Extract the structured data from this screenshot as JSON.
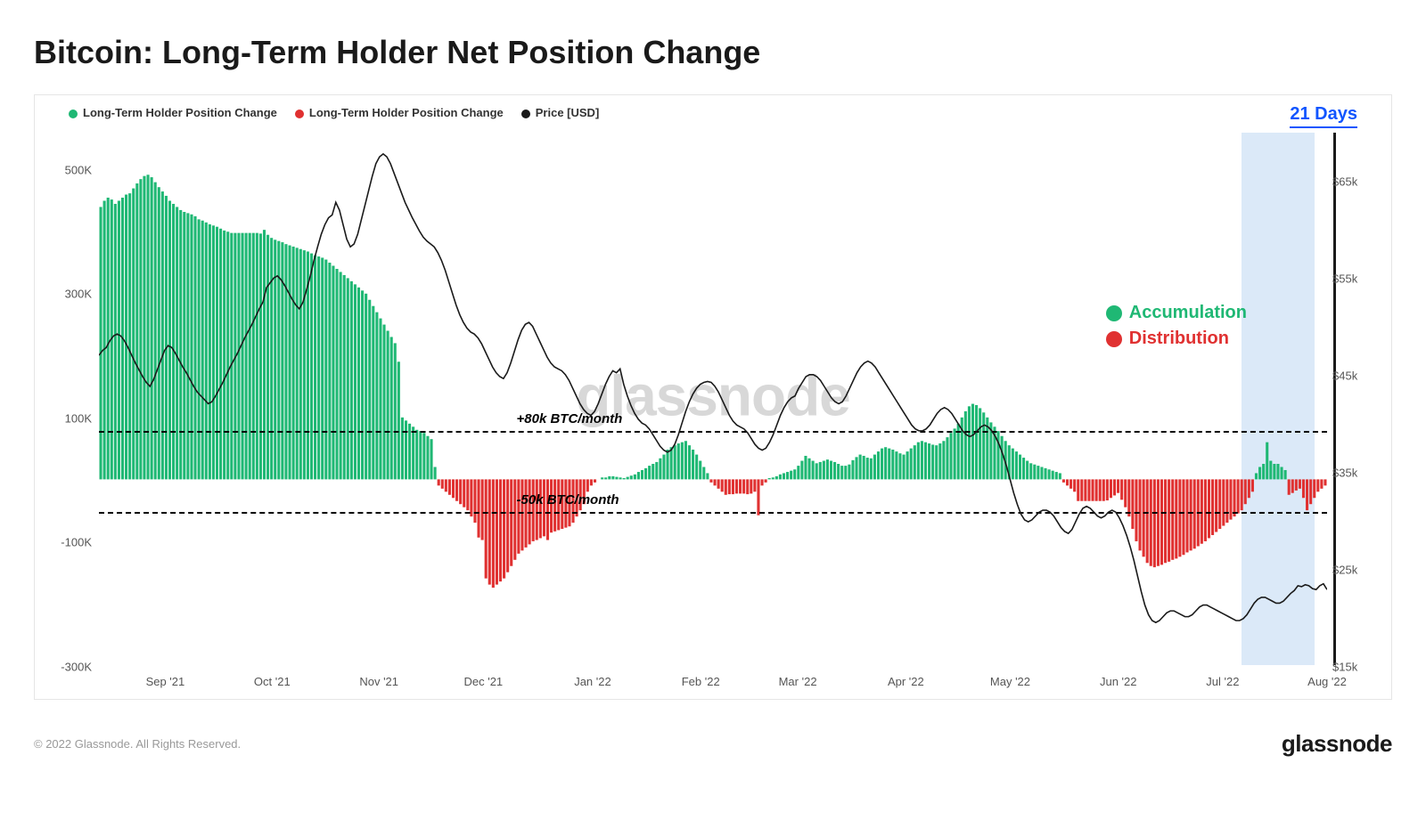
{
  "title": "Bitcoin: Long-Term Holder Net Position Change",
  "copyright": "© 2022 Glassnode. All Rights Reserved.",
  "brand": "glassnode",
  "watermark": "glassnode",
  "highlight_label": "21 Days",
  "legend": {
    "items": [
      {
        "label": "Long-Term Holder Position Change",
        "color": "#1fb874"
      },
      {
        "label": "Long-Term Holder Position Change",
        "color": "#e03131"
      },
      {
        "label": "Price [USD]",
        "color": "#1a1a1a"
      }
    ]
  },
  "annotation_box": {
    "accumulation": {
      "label": "Accumulation",
      "color": "#1fb874"
    },
    "distribution": {
      "label": "Distribution",
      "color": "#e03131"
    }
  },
  "reference_lines": {
    "upper": {
      "value": 80000,
      "label": "+80k BTC/month"
    },
    "lower": {
      "value": -50000,
      "label": "-50k BTC/month"
    }
  },
  "chart": {
    "type": "bar+line",
    "background_color": "#ffffff",
    "grid_color": "#f0f0f0",
    "bar_positive_color": "#1fb874",
    "bar_negative_color": "#e03131",
    "line_color": "#1a1a1a",
    "line_width": 1.6,
    "highlight_band_color": "#c8ddf5",
    "axis_left": {
      "min": -300000,
      "max": 560000,
      "ticks": [
        -300000,
        -100000,
        100000,
        300000,
        500000
      ],
      "tick_labels": [
        "-300K",
        "-100K",
        "100K",
        "300K",
        "500K"
      ]
    },
    "axis_right": {
      "min": 15000,
      "max": 70000,
      "ticks": [
        15000,
        25000,
        35000,
        45000,
        55000,
        65000
      ],
      "tick_labels": [
        "$15k",
        "$25k",
        "$35k",
        "$45k",
        "$55k",
        "$65k"
      ]
    },
    "x_axis": {
      "labels": [
        "Sep '21",
        "Oct '21",
        "Nov '21",
        "Dec '21",
        "Jan '22",
        "Feb '22",
        "Mar '22",
        "Apr '22",
        "May '22",
        "Jun '22",
        "Jul '22",
        "Aug '22"
      ],
      "positions_pct": [
        5.4,
        14.1,
        22.8,
        31.3,
        40.2,
        49.0,
        56.9,
        65.7,
        74.2,
        83.0,
        91.5,
        100.0
      ]
    },
    "highlight_band": {
      "start_pct": 93.0,
      "end_pct": 99.0
    },
    "bars": [
      440000,
      450000,
      455000,
      452000,
      445000,
      450000,
      455000,
      460000,
      462000,
      470000,
      478000,
      485000,
      490000,
      492000,
      488000,
      480000,
      472000,
      465000,
      458000,
      450000,
      445000,
      440000,
      435000,
      432000,
      430000,
      428000,
      425000,
      420000,
      418000,
      415000,
      412000,
      410000,
      408000,
      405000,
      402000,
      400000,
      398000,
      398000,
      398000,
      398000,
      398000,
      398000,
      398000,
      398000,
      397000,
      403000,
      395000,
      390000,
      387000,
      385000,
      383000,
      380000,
      378000,
      376000,
      374000,
      372000,
      370000,
      368000,
      365000,
      362000,
      360000,
      358000,
      355000,
      350000,
      345000,
      340000,
      335000,
      330000,
      325000,
      320000,
      315000,
      310000,
      305000,
      300000,
      290000,
      280000,
      270000,
      260000,
      250000,
      240000,
      230000,
      220000,
      190000,
      100000,
      95000,
      90000,
      85000,
      80000,
      78000,
      75000,
      70000,
      65000,
      20000,
      -10000,
      -15000,
      -20000,
      -25000,
      -30000,
      -35000,
      -40000,
      -45000,
      -50000,
      -60000,
      -70000,
      -94000,
      -98000,
      -160000,
      -170000,
      -175000,
      -170000,
      -165000,
      -160000,
      -150000,
      -140000,
      -130000,
      -120000,
      -115000,
      -110000,
      -105000,
      -100000,
      -98000,
      -95000,
      -92000,
      -98000,
      -86000,
      -84000,
      -82000,
      -80000,
      -78000,
      -76000,
      -70000,
      -60000,
      -50000,
      -40000,
      -20000,
      -10000,
      -5000,
      0,
      3000,
      3000,
      5000,
      5000,
      4000,
      3000,
      2000,
      4000,
      6000,
      8000,
      12000,
      15000,
      18000,
      22000,
      25000,
      28000,
      34000,
      40000,
      48000,
      52000,
      55000,
      58000,
      60000,
      62000,
      55000,
      48000,
      40000,
      30000,
      20000,
      10000,
      -5000,
      -10000,
      -15000,
      -20000,
      -25000,
      -24000,
      -24000,
      -23000,
      -23000,
      -23000,
      -24000,
      -23000,
      -20000,
      -58000,
      -10000,
      -5000,
      2000,
      3000,
      5000,
      8000,
      10000,
      12000,
      14000,
      16000,
      22000,
      30000,
      38000,
      34000,
      30000,
      26000,
      28000,
      30000,
      32000,
      30000,
      28000,
      25000,
      22000,
      22000,
      24000,
      31000,
      36000,
      40000,
      38000,
      35000,
      34000,
      40000,
      45000,
      50000,
      52000,
      50000,
      48000,
      45000,
      42000,
      40000,
      45000,
      50000,
      55000,
      60000,
      62000,
      60000,
      58000,
      56000,
      55000,
      58000,
      62000,
      68000,
      75000,
      82000,
      90000,
      100000,
      110000,
      118000,
      122000,
      120000,
      115000,
      108000,
      100000,
      92000,
      85000,
      78000,
      70000,
      62000,
      55000,
      50000,
      45000,
      40000,
      35000,
      30000,
      26000,
      24000,
      22000,
      20000,
      18000,
      16000,
      14000,
      12000,
      10000,
      -5000,
      -10000,
      -15000,
      -20000,
      -35000,
      -35000,
      -35000,
      -35000,
      -35000,
      -35000,
      -35000,
      -35000,
      -34000,
      -30000,
      -26000,
      -22000,
      -33000,
      -45000,
      -60000,
      -80000,
      -100000,
      -115000,
      -125000,
      -135000,
      -140000,
      -142000,
      -140000,
      -138000,
      -135000,
      -133000,
      -130000,
      -128000,
      -125000,
      -122000,
      -118000,
      -115000,
      -112000,
      -108000,
      -104000,
      -100000,
      -95000,
      -90000,
      -85000,
      -80000,
      -75000,
      -70000,
      -65000,
      -60000,
      -55000,
      -50000,
      -40000,
      -30000,
      -20000,
      10000,
      20000,
      25000,
      60000,
      30000,
      25000,
      25000,
      20000,
      15000,
      -25000,
      -22000,
      -18000,
      -15000,
      -30000,
      -50000,
      -40000,
      -30000,
      -20000,
      -15000,
      -10000
    ],
    "price": [
      47000,
      47500,
      47800,
      48500,
      49000,
      49200,
      49000,
      48500,
      47800,
      47000,
      46200,
      45500,
      44800,
      44200,
      43800,
      44500,
      45500,
      46500,
      47500,
      48000,
      47800,
      47200,
      46500,
      45800,
      45200,
      44500,
      43800,
      43200,
      42800,
      42400,
      42000,
      42200,
      42800,
      43500,
      44200,
      45000,
      45800,
      46500,
      47200,
      48000,
      48800,
      49500,
      50200,
      51000,
      51800,
      52500,
      54000,
      54500,
      55000,
      55200,
      54800,
      54200,
      53500,
      52800,
      52200,
      51800,
      52500,
      53800,
      55200,
      56800,
      58200,
      59500,
      60500,
      61200,
      61500,
      62800,
      62000,
      60500,
      59000,
      58200,
      58500,
      59500,
      61000,
      62500,
      64000,
      65500,
      66800,
      67500,
      67800,
      67500,
      66800,
      65800,
      64800,
      63800,
      62800,
      62000,
      61200,
      60500,
      59800,
      59200,
      58800,
      58500,
      58200,
      57600,
      56800,
      55800,
      54600,
      53400,
      52200,
      51200,
      50400,
      49800,
      49400,
      49200,
      48800,
      48200,
      47400,
      46600,
      45800,
      45200,
      44800,
      44600,
      45200,
      46200,
      47400,
      48600,
      49600,
      50200,
      50400,
      50000,
      49200,
      48400,
      47600,
      46800,
      46200,
      45800,
      45600,
      45400,
      45000,
      44400,
      43600,
      42800,
      42000,
      41400,
      41000,
      40800,
      41200,
      42000,
      43000,
      44000,
      44800,
      45400,
      45200,
      45600,
      44000,
      42800,
      41800,
      41000,
      40400,
      40000,
      39800,
      39400,
      38800,
      38200,
      37600,
      37200,
      37000,
      37200,
      37800,
      38800,
      40000,
      41200,
      42200,
      43000,
      43600,
      44000,
      44200,
      44300,
      44200,
      43800,
      43200,
      42400,
      41600,
      40800,
      40200,
      39800,
      39600,
      39400,
      39000,
      38400,
      37800,
      37400,
      37200,
      37400,
      38000,
      38800,
      39800,
      40800,
      41600,
      42200,
      42600,
      42800,
      43600,
      44200,
      44800,
      45000,
      45000,
      44800,
      44400,
      43800,
      43200,
      42600,
      42200,
      42000,
      42200,
      42800,
      43600,
      44400,
      45200,
      45800,
      46200,
      46400,
      46200,
      45800,
      45200,
      44600,
      44000,
      43400,
      42800,
      42200,
      41600,
      41000,
      40400,
      39800,
      39400,
      39200,
      39200,
      39400,
      39800,
      40400,
      41000,
      41400,
      41600,
      41400,
      41000,
      40400,
      39800,
      39200,
      38800,
      38600,
      38800,
      39200,
      39600,
      39800,
      39600,
      39200,
      38600,
      37800,
      36800,
      35600,
      34200,
      32800,
      31600,
      30600,
      30000,
      29800,
      30000,
      30400,
      30800,
      31000,
      31000,
      30800,
      30400,
      29800,
      29200,
      28800,
      28600,
      29000,
      29800,
      30600,
      31200,
      31400,
      31200,
      30800,
      30400,
      30200,
      30400,
      30800,
      31000,
      30800,
      30200,
      29400,
      28400,
      27200,
      25800,
      24200,
      22600,
      21200,
      20200,
      19600,
      19400,
      19600,
      20000,
      20400,
      20600,
      20600,
      20400,
      20200,
      20000,
      20000,
      20200,
      20600,
      21000,
      21200,
      21200,
      21000,
      20800,
      20600,
      20400,
      20200,
      20000,
      19800,
      19600,
      19600,
      19800,
      20200,
      20800,
      21400,
      21800,
      22000,
      22000,
      21800,
      21600,
      21400,
      21400,
      21600,
      22000,
      22400,
      22700,
      23200,
      23100,
      23300,
      23200,
      22900,
      22800,
      23200,
      23400,
      22800
    ]
  }
}
